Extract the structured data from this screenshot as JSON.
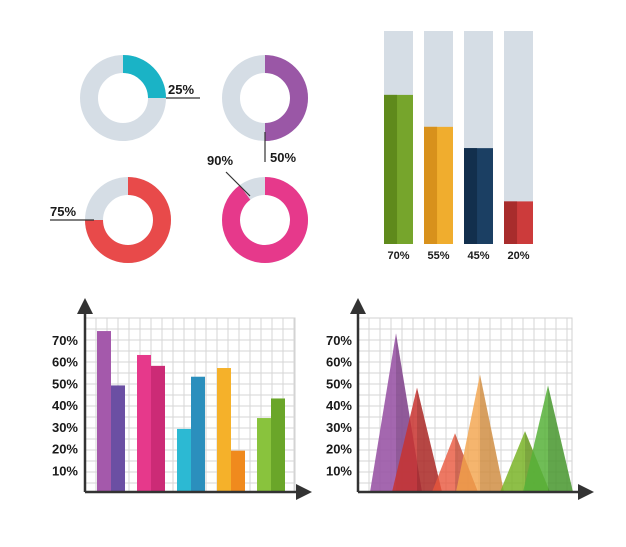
{
  "chart_data": [
    {
      "type": "pie",
      "chart": "donut",
      "percent": 25,
      "value_label": "25%",
      "color": "#1ab3c6",
      "track_color": "#d5dde5"
    },
    {
      "type": "pie",
      "chart": "donut",
      "percent": 50,
      "value_label": "50%",
      "color": "#9a57a6",
      "track_color": "#d5dde5"
    },
    {
      "type": "pie",
      "chart": "donut",
      "percent": 75,
      "value_label": "75%",
      "color": "#e84a4a",
      "track_color": "#d5dde5"
    },
    {
      "type": "pie",
      "chart": "donut",
      "percent": 90,
      "value_label": "90%",
      "color": "#e6398b",
      "track_color": "#d5dde5"
    },
    {
      "type": "bar",
      "orientation": "vertical",
      "categories": [
        "70%",
        "55%",
        "45%",
        "20%"
      ],
      "values": [
        70,
        55,
        45,
        20
      ],
      "ylim": [
        0,
        100
      ],
      "track_color": "#d5dde5",
      "colors": [
        "#76a52c",
        "#f0ad2e",
        "#1b3f63",
        "#cc3b3b"
      ],
      "shade_colors": [
        "#5f8a1c",
        "#d8911c",
        "#122f4d",
        "#a82c2c"
      ]
    },
    {
      "type": "bar",
      "ylabels": [
        "70%",
        "60%",
        "50%",
        "40%",
        "30%",
        "20%",
        "10%"
      ],
      "ylim": [
        0,
        80
      ],
      "grid": true,
      "series": [
        {
          "values": [
            74,
            63,
            29,
            57,
            34
          ]
        },
        {
          "values": [
            49,
            58,
            53,
            19,
            43
          ]
        }
      ],
      "colors": [
        [
          "#a459ab",
          "#e6398b",
          "#2cb9d3",
          "#f5b12a",
          "#89c33d"
        ],
        [
          "#6b4fa3",
          "#cc2b76",
          "#2b8fbd",
          "#f08a1d",
          "#6aa629"
        ]
      ]
    },
    {
      "type": "area",
      "chart": "triangle",
      "ylabels": [
        "70%",
        "60%",
        "50%",
        "40%",
        "30%",
        "20%",
        "10%"
      ],
      "ylim": [
        0,
        80
      ],
      "grid": true,
      "series": [
        {
          "peak": 73,
          "color": "#9a57a6",
          "opacity": 0.9
        },
        {
          "peak": 48,
          "color": "#c8322f",
          "opacity": 0.85
        },
        {
          "peak": 27,
          "color": "#e8563c",
          "opacity": 0.8
        },
        {
          "peak": 54,
          "color": "#f2a34a",
          "opacity": 0.8
        },
        {
          "peak": 28,
          "color": "#7ab428",
          "opacity": 0.85
        },
        {
          "peak": 49,
          "color": "#57b23a",
          "opacity": 0.85
        }
      ]
    }
  ]
}
